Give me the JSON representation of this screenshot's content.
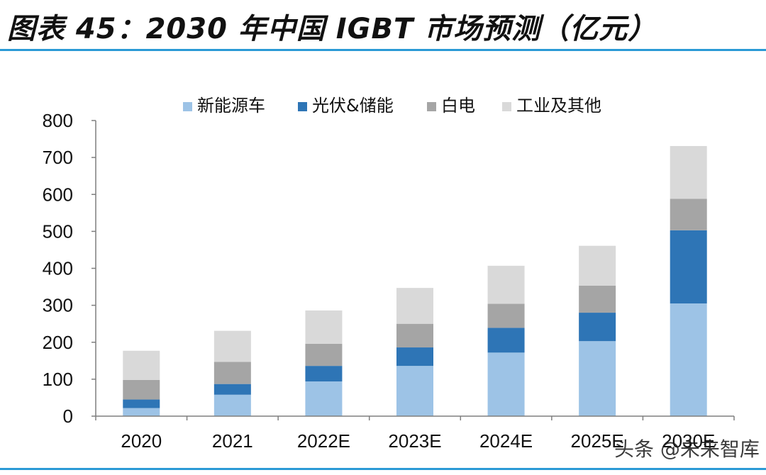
{
  "header": {
    "title": "图表 45：2030 年中国 IGBT 市场预测（亿元）"
  },
  "watermark": {
    "text": "头条 @未来智库"
  },
  "colors": {
    "accent_rule": "#2b9ad6",
    "axis": "#7f7f7f",
    "text": "#111111"
  },
  "chart_data": {
    "type": "bar",
    "stacked": true,
    "title": "2030 年中国 IGBT 市场预测（亿元）",
    "xlabel": "",
    "ylabel": "",
    "ylim": [
      0,
      800
    ],
    "yticks": [
      0,
      100,
      200,
      300,
      400,
      500,
      600,
      700,
      800
    ],
    "grid": false,
    "legend_position": "top-center",
    "categories": [
      "2020",
      "2021",
      "2022E",
      "2023E",
      "2024E",
      "2025E",
      "2030E"
    ],
    "series": [
      {
        "name": "新能源车",
        "color": "#9dc3e6",
        "values": [
          22,
          58,
          94,
          136,
          172,
          203,
          305
        ]
      },
      {
        "name": "光伏&储能",
        "color": "#2e75b6",
        "values": [
          23,
          29,
          42,
          50,
          67,
          77,
          198
        ]
      },
      {
        "name": "白电",
        "color": "#a5a5a5",
        "values": [
          53,
          60,
          60,
          64,
          65,
          73,
          85
        ]
      },
      {
        "name": "工业及其他",
        "color": "#d9d9d9",
        "values": [
          79,
          84,
          90,
          97,
          103,
          108,
          143
        ]
      }
    ]
  }
}
